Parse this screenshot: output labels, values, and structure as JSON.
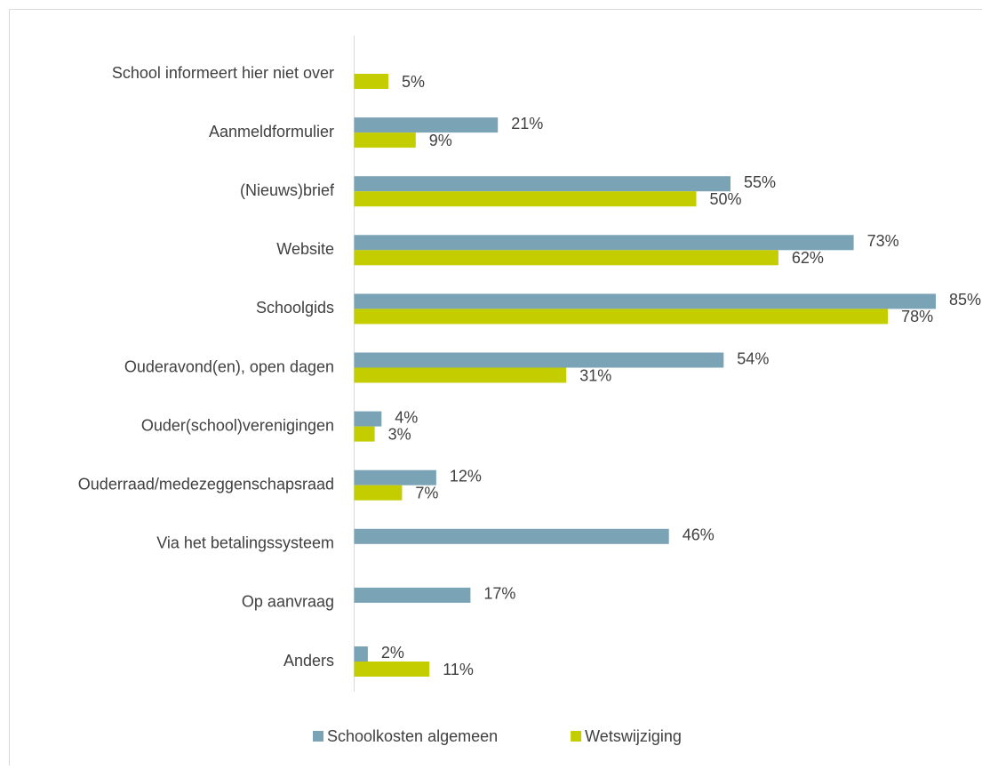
{
  "chart_data": {
    "type": "bar",
    "orientation": "horizontal",
    "categories": [
      "School informeert hier niet over",
      "Aanmeldformulier",
      "(Nieuws)brief",
      "Website",
      "Schoolgids",
      "Ouderavond(en), open dagen",
      "Ouder(school)verenigingen",
      "Ouderraad/medezeggenschapsraad",
      "Via het betalingssysteem",
      "Op aanvraag",
      "Anders"
    ],
    "series": [
      {
        "name": "Schoolkosten algemeen",
        "color": "#7aa3b5",
        "values": [
          null,
          21,
          55,
          73,
          85,
          54,
          4,
          12,
          46,
          17,
          2
        ],
        "value_labels": [
          null,
          "21%",
          "55%",
          "73%",
          "85%",
          "54%",
          "4%",
          "12%",
          "46%",
          "17%",
          "2%"
        ]
      },
      {
        "name": "Wetswijziging",
        "color": "#c3cd00",
        "values": [
          5,
          9,
          50,
          62,
          78,
          31,
          3,
          7,
          null,
          null,
          11
        ],
        "value_labels": [
          "5%",
          "9%",
          "50%",
          "62%",
          "78%",
          "31%",
          "3%",
          "7%",
          null,
          null,
          "11%"
        ]
      }
    ],
    "legend": "bottom"
  }
}
